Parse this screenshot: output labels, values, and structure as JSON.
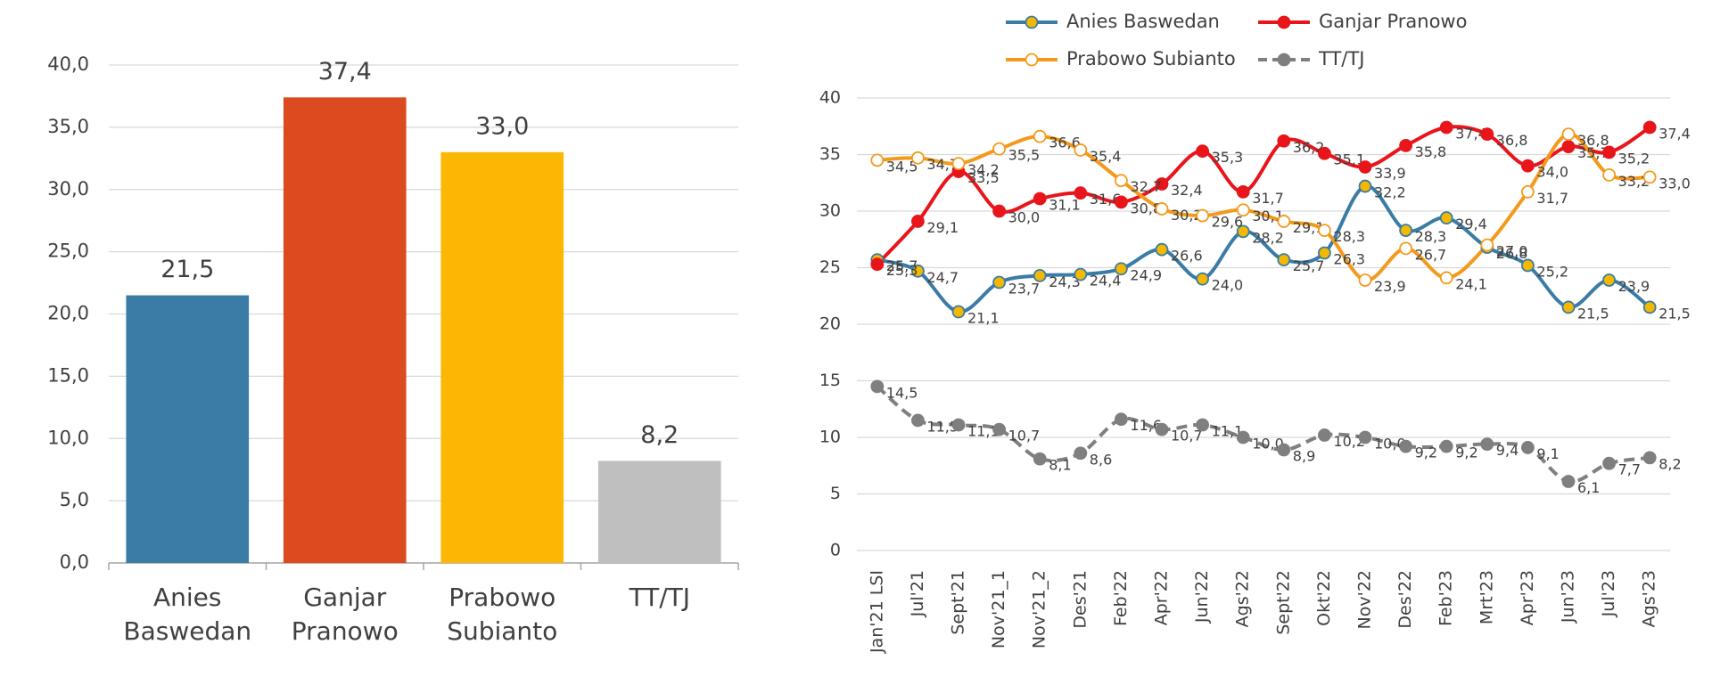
{
  "chart_data": [
    {
      "type": "bar",
      "categories": [
        "Anies Baswedan",
        "Ganjar Pranowo",
        "Prabowo Subianto",
        "TT/TJ"
      ],
      "values": [
        21.5,
        37.4,
        33.0,
        8.2
      ],
      "value_labels": [
        "21,5",
        "37,4",
        "33,0",
        "8,2"
      ],
      "colors": [
        "#3a7ca5",
        "#dc4a20",
        "#fbb703",
        "#bfbfbf"
      ],
      "ylim": [
        0,
        40
      ],
      "yticks": [
        {
          "value": 0,
          "label": "0,0"
        },
        {
          "value": 5,
          "label": "5,0"
        },
        {
          "value": 10,
          "label": "10,0"
        },
        {
          "value": 15,
          "label": "15,0"
        },
        {
          "value": 20,
          "label": "20,0"
        },
        {
          "value": 25,
          "label": "25,0"
        },
        {
          "value": 30,
          "label": "30,0"
        },
        {
          "value": 35,
          "label": "35,0"
        },
        {
          "value": 40,
          "label": "40,0"
        }
      ],
      "grid": true
    },
    {
      "type": "line",
      "categories": [
        "Jan'21 LSI",
        "Jul'21",
        "Sept'21",
        "Nov'21_1",
        "Nov'21_2",
        "Des'21",
        "Feb'22",
        "Apr'22",
        "Jun'22",
        "Ags'22",
        "Sept'22",
        "Okt'22",
        "Nov'22",
        "Des'22",
        "Feb'23",
        "Mrt'23",
        "Apr'23",
        "Jun'23",
        "Jul'23",
        "Ags'23"
      ],
      "series": [
        {
          "name": "Anies Baswedan",
          "color": "#3a7ca5",
          "marker_fill": "#f5b800",
          "dash": false,
          "values": [
            25.7,
            24.7,
            21.1,
            23.7,
            24.3,
            24.4,
            24.9,
            26.6,
            24.0,
            28.2,
            25.7,
            26.3,
            32.2,
            28.3,
            29.4,
            26.8,
            25.2,
            21.5,
            23.9,
            21.5
          ],
          "value_labels": [
            "25,7",
            "24,7",
            "21,1",
            "23,7",
            "24,3",
            "24,4",
            "24,9",
            "26,6",
            "24,0",
            "28,2",
            "25,7",
            "26,3",
            "32,2",
            "28,3",
            "29,4",
            "26,8",
            "25,2",
            "21,5",
            "23,9",
            "21,5"
          ]
        },
        {
          "name": "Ganjar Pranowo",
          "color": "#e8151b",
          "marker_fill": "#e8151b",
          "dash": false,
          "values": [
            25.3,
            29.1,
            33.5,
            30.0,
            31.1,
            31.6,
            30.8,
            32.4,
            35.3,
            31.7,
            36.2,
            35.1,
            33.9,
            35.8,
            37.4,
            36.8,
            34.0,
            35.7,
            35.2,
            37.4
          ],
          "value_labels": [
            "25,3",
            "29,1",
            "33,5",
            "30,0",
            "31,1",
            "31,6",
            "30,8",
            "32,4",
            "35,3",
            "31,7",
            "36,2",
            "35,1",
            "33,9",
            "35,8",
            "37,4",
            "36,8",
            "34,0",
            "35,7",
            "35,2",
            "37,4"
          ]
        },
        {
          "name": "Prabowo Subianto",
          "color": "#f39a1c",
          "marker_fill": "#ffffff",
          "dash": false,
          "values": [
            34.5,
            34.7,
            34.2,
            35.5,
            36.6,
            35.4,
            32.7,
            30.2,
            29.6,
            30.1,
            29.1,
            28.3,
            23.9,
            26.7,
            24.1,
            27.0,
            31.7,
            36.8,
            33.2,
            33.0
          ],
          "value_labels": [
            "34,5",
            "34,7",
            "34,2",
            "35,5",
            "36,6",
            "35,4",
            "32,7",
            "30,2",
            "29,6",
            "30,1",
            "29,1",
            "28,3",
            "23,9",
            "26,7",
            "24,1",
            "27,0",
            "31,7",
            "36,8",
            "33,2",
            "33,0"
          ]
        },
        {
          "name": "TT/TJ",
          "color": "#7f7f7f",
          "marker_fill": "#7f7f7f",
          "dash": true,
          "values": [
            14.5,
            11.5,
            11.1,
            10.7,
            8.1,
            8.6,
            11.6,
            10.7,
            11.1,
            10.0,
            8.9,
            10.2,
            10.0,
            9.2,
            9.2,
            9.4,
            9.1,
            6.1,
            7.7,
            8.2
          ],
          "value_labels": [
            "14,5",
            "11,5",
            "11,1",
            "10,7",
            "8,1",
            "8,6",
            "11,6",
            "10,7",
            "11,1",
            "10,0",
            "8,9",
            "10,2",
            "10,0",
            "9,2",
            "9,2",
            "9,4",
            "9,1",
            "6,1",
            "7,7",
            "8,2"
          ]
        }
      ],
      "ylim": [
        0,
        40
      ],
      "yticks": [
        0,
        5,
        10,
        15,
        20,
        25,
        30,
        35,
        40
      ],
      "grid": true
    }
  ]
}
